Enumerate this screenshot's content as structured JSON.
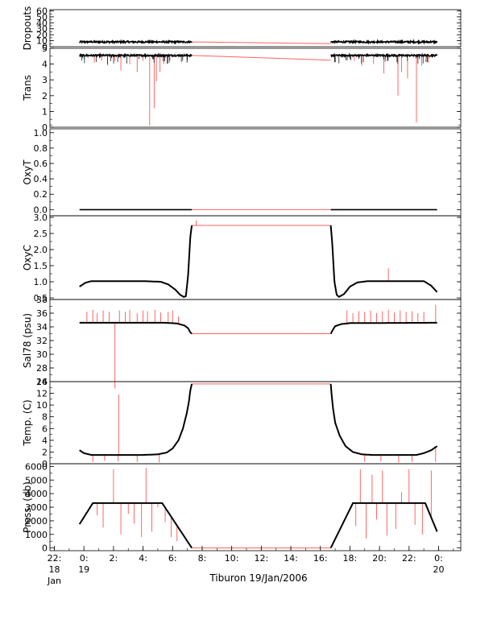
{
  "colors": {
    "axis": "#000000",
    "data": "#000000",
    "flagged": "#ff4040",
    "interp": "#ff6060"
  },
  "chart_data": {
    "type": "line",
    "title": "",
    "xlabel": "Tiburon 19/Jan/2006",
    "x_unit": "hours since 00:00 19 Jan 2006",
    "xlim": [
      -2.3,
      25.5
    ],
    "x_ticks": [
      {
        "x": -2,
        "line1": "22:",
        "line2": "18",
        "line3": "Jan"
      },
      {
        "x": 0,
        "line1": "0:",
        "line2": "19",
        "line3": ""
      },
      {
        "x": 2,
        "line1": "2:",
        "line2": "",
        "line3": ""
      },
      {
        "x": 4,
        "line1": "4:",
        "line2": "",
        "line3": ""
      },
      {
        "x": 6,
        "line1": "6:",
        "line2": "",
        "line3": ""
      },
      {
        "x": 8,
        "line1": "8:",
        "line2": "",
        "line3": ""
      },
      {
        "x": 10,
        "line1": "10:",
        "line2": "",
        "line3": ""
      },
      {
        "x": 12,
        "line1": "12:",
        "line2": "",
        "line3": ""
      },
      {
        "x": 14,
        "line1": "14:",
        "line2": "",
        "line3": ""
      },
      {
        "x": 16,
        "line1": "16:",
        "line2": "",
        "line3": ""
      },
      {
        "x": 18,
        "line1": "18:",
        "line2": "",
        "line3": ""
      },
      {
        "x": 20,
        "line1": "20:",
        "line2": "",
        "line3": ""
      },
      {
        "x": 22,
        "line1": "22:",
        "line2": "",
        "line3": ""
      },
      {
        "x": 24,
        "line1": "0:",
        "line2": "20",
        "line3": ""
      }
    ],
    "gap": [
      7.3,
      16.7
    ],
    "panels": [
      {
        "name": "dropouts",
        "ylabel": "Dropouts",
        "ylim": [
          0,
          62
        ],
        "yticks": [
          0,
          10,
          20,
          30,
          40,
          50,
          60
        ],
        "series": {
          "type": "flat",
          "start": -0.3,
          "end": 23.9,
          "value": 8,
          "gap_value": 5,
          "noise": 1.4
        }
      },
      {
        "name": "trans",
        "ylabel": "Trans",
        "ylim": [
          0,
          5
        ],
        "yticks": [
          0,
          1,
          2,
          3,
          4,
          5
        ],
        "series": {
          "type": "flat",
          "start": -0.3,
          "end": 23.9,
          "value": 4.55,
          "gap_value": 4.25,
          "noise": 0.05
        },
        "spikes": [
          [
            0.7,
            4.1
          ],
          [
            1.2,
            4.2
          ],
          [
            1.6,
            3.9
          ],
          [
            2.1,
            4.2
          ],
          [
            2.5,
            3.6
          ],
          [
            3.1,
            4.0
          ],
          [
            3.6,
            3.5
          ],
          [
            4.0,
            4.2
          ],
          [
            4.45,
            0.1
          ],
          [
            4.75,
            1.2
          ],
          [
            4.9,
            2.9
          ],
          [
            5.15,
            3.5
          ],
          [
            5.4,
            4.0
          ],
          [
            5.8,
            4.1
          ],
          [
            18.3,
            4.2
          ],
          [
            18.8,
            3.9
          ],
          [
            19.6,
            4.0
          ],
          [
            20.3,
            3.4
          ],
          [
            21.25,
            2.0
          ],
          [
            21.5,
            3.5
          ],
          [
            21.9,
            3.1
          ],
          [
            22.5,
            0.3
          ],
          [
            22.85,
            3.9
          ],
          [
            23.3,
            4.1
          ]
        ]
      },
      {
        "name": "oxyt",
        "ylabel": "OxyT",
        "ylim": [
          -0.08,
          1.05
        ],
        "yticks": [
          0.0,
          0.2,
          0.4,
          0.6,
          0.8,
          1.0
        ],
        "ytick_format": "1",
        "series": {
          "type": "flat",
          "start": -0.3,
          "end": 23.9,
          "value": 0.0,
          "gap_value": 0.0,
          "noise": 0.0
        }
      },
      {
        "name": "oxyc",
        "ylabel": "OxyC",
        "ylim": [
          0.45,
          3.05
        ],
        "yticks": [
          0.5,
          1.0,
          1.5,
          2.0,
          2.5,
          3.0
        ],
        "ytick_format": "1",
        "series": {
          "type": "profile",
          "points": [
            [
              -0.3,
              0.85
            ],
            [
              0.1,
              0.97
            ],
            [
              0.5,
              1.02
            ],
            [
              4.0,
              1.02
            ],
            [
              5.2,
              1.0
            ],
            [
              5.7,
              0.92
            ],
            [
              6.2,
              0.75
            ],
            [
              6.5,
              0.6
            ],
            [
              6.75,
              0.53
            ],
            [
              6.9,
              0.55
            ],
            [
              7.05,
              1.2
            ],
            [
              7.2,
              2.4
            ],
            [
              7.3,
              2.75
            ],
            [
              16.7,
              2.75
            ],
            [
              16.8,
              2.2
            ],
            [
              16.95,
              1.0
            ],
            [
              17.1,
              0.6
            ],
            [
              17.25,
              0.53
            ],
            [
              17.6,
              0.62
            ],
            [
              18.0,
              0.85
            ],
            [
              18.5,
              0.98
            ],
            [
              19.2,
              1.02
            ],
            [
              23.0,
              1.02
            ],
            [
              23.5,
              0.88
            ],
            [
              23.9,
              0.68
            ]
          ]
        },
        "spikes": [
          [
            7.6,
            2.9
          ],
          [
            20.6,
            1.42
          ]
        ]
      },
      {
        "name": "salinity",
        "ylabel": "Sal78 (psu)",
        "ylim": [
          26,
          38
        ],
        "yticks": [
          26,
          28,
          30,
          32,
          34,
          36,
          38
        ],
        "series": {
          "type": "profile",
          "points": [
            [
              -0.3,
              34.6
            ],
            [
              5.5,
              34.6
            ],
            [
              6.3,
              34.5
            ],
            [
              6.8,
              34.2
            ],
            [
              7.05,
              33.8
            ],
            [
              7.2,
              33.2
            ],
            [
              7.3,
              33.0
            ],
            [
              16.7,
              33.0
            ],
            [
              16.85,
              33.6
            ],
            [
              17.0,
              34.1
            ],
            [
              17.4,
              34.4
            ],
            [
              18.0,
              34.55
            ],
            [
              23.9,
              34.6
            ]
          ]
        },
        "spikes": [
          [
            0.2,
            36.2
          ],
          [
            0.6,
            36.5
          ],
          [
            0.9,
            36.0
          ],
          [
            1.3,
            36.4
          ],
          [
            1.7,
            36.2
          ],
          [
            2.1,
            25.0
          ],
          [
            2.4,
            36.4
          ],
          [
            2.8,
            36.2
          ],
          [
            3.1,
            36.5
          ],
          [
            3.6,
            36.0
          ],
          [
            4.0,
            36.4
          ],
          [
            4.3,
            36.3
          ],
          [
            4.8,
            36.5
          ],
          [
            5.2,
            36.1
          ],
          [
            5.7,
            36.2
          ],
          [
            6.0,
            36.4
          ],
          [
            6.4,
            35.5
          ],
          [
            17.8,
            36.4
          ],
          [
            18.2,
            36.0
          ],
          [
            18.6,
            36.3
          ],
          [
            19.0,
            36.2
          ],
          [
            19.4,
            36.4
          ],
          [
            19.8,
            36.0
          ],
          [
            20.2,
            36.3
          ],
          [
            20.6,
            36.5
          ],
          [
            21.0,
            36.1
          ],
          [
            21.4,
            36.4
          ],
          [
            21.8,
            36.2
          ],
          [
            22.2,
            36.3
          ],
          [
            22.6,
            36.0
          ],
          [
            23.0,
            36.2
          ],
          [
            23.8,
            37.2
          ]
        ]
      },
      {
        "name": "temperature",
        "ylabel": "Temp. (C)",
        "ylim": [
          0,
          14
        ],
        "yticks": [
          0,
          2,
          4,
          6,
          8,
          10,
          12,
          14
        ],
        "series": {
          "type": "profile",
          "points": [
            [
              -0.3,
              2.3
            ],
            [
              0.0,
              1.8
            ],
            [
              0.5,
              1.5
            ],
            [
              4.0,
              1.5
            ],
            [
              5.0,
              1.6
            ],
            [
              5.6,
              1.9
            ],
            [
              6.0,
              2.6
            ],
            [
              6.4,
              4.0
            ],
            [
              6.7,
              6.0
            ],
            [
              6.95,
              8.5
            ],
            [
              7.1,
              10.5
            ],
            [
              7.2,
              12.5
            ],
            [
              7.3,
              13.6
            ],
            [
              16.7,
              13.6
            ],
            [
              16.75,
              12.0
            ],
            [
              16.85,
              9.5
            ],
            [
              17.0,
              7.0
            ],
            [
              17.3,
              4.8
            ],
            [
              17.7,
              3.0
            ],
            [
              18.2,
              2.0
            ],
            [
              18.8,
              1.6
            ],
            [
              19.5,
              1.5
            ],
            [
              22.5,
              1.5
            ],
            [
              23.0,
              1.8
            ],
            [
              23.5,
              2.3
            ],
            [
              23.9,
              3.0
            ]
          ]
        },
        "spikes": [
          [
            2.35,
            11.8
          ],
          [
            0.6,
            0.3
          ],
          [
            1.4,
            0.5
          ],
          [
            2.3,
            0.4
          ],
          [
            3.6,
            0.3
          ],
          [
            5.1,
            0.2
          ],
          [
            19.0,
            0.3
          ],
          [
            20.1,
            0.4
          ],
          [
            21.3,
            0.2
          ],
          [
            22.2,
            0.3
          ],
          [
            23.8,
            0.3
          ]
        ]
      },
      {
        "name": "pressure",
        "ylabel": "Press. (db)",
        "ylim": [
          -200,
          6200
        ],
        "yticks": [
          0,
          1000,
          2000,
          3000,
          4000,
          5000,
          6000
        ],
        "series": {
          "type": "profile",
          "points": [
            [
              -0.3,
              1750
            ],
            [
              0.6,
              3300
            ],
            [
              5.3,
              3300
            ],
            [
              7.3,
              0
            ],
            [
              16.7,
              0
            ],
            [
              18.2,
              3300
            ],
            [
              23.1,
              3300
            ],
            [
              23.9,
              1200
            ]
          ]
        },
        "spikes": [
          [
            0.9,
            2400
          ],
          [
            1.3,
            1500
          ],
          [
            2.0,
            5800
          ],
          [
            2.5,
            1000
          ],
          [
            3.0,
            2500
          ],
          [
            3.4,
            1800
          ],
          [
            3.9,
            800
          ],
          [
            4.2,
            5900
          ],
          [
            4.6,
            1200
          ],
          [
            5.0,
            3000
          ],
          [
            5.5,
            1900
          ],
          [
            5.9,
            800
          ],
          [
            6.3,
            500
          ],
          [
            18.4,
            1600
          ],
          [
            18.7,
            5800
          ],
          [
            19.1,
            700
          ],
          [
            19.5,
            5400
          ],
          [
            19.8,
            2100
          ],
          [
            20.2,
            5700
          ],
          [
            20.5,
            900
          ],
          [
            21.1,
            1400
          ],
          [
            21.5,
            4100
          ],
          [
            22.0,
            5800
          ],
          [
            22.4,
            1700
          ],
          [
            22.9,
            1000
          ],
          [
            23.5,
            5700
          ]
        ]
      }
    ]
  }
}
